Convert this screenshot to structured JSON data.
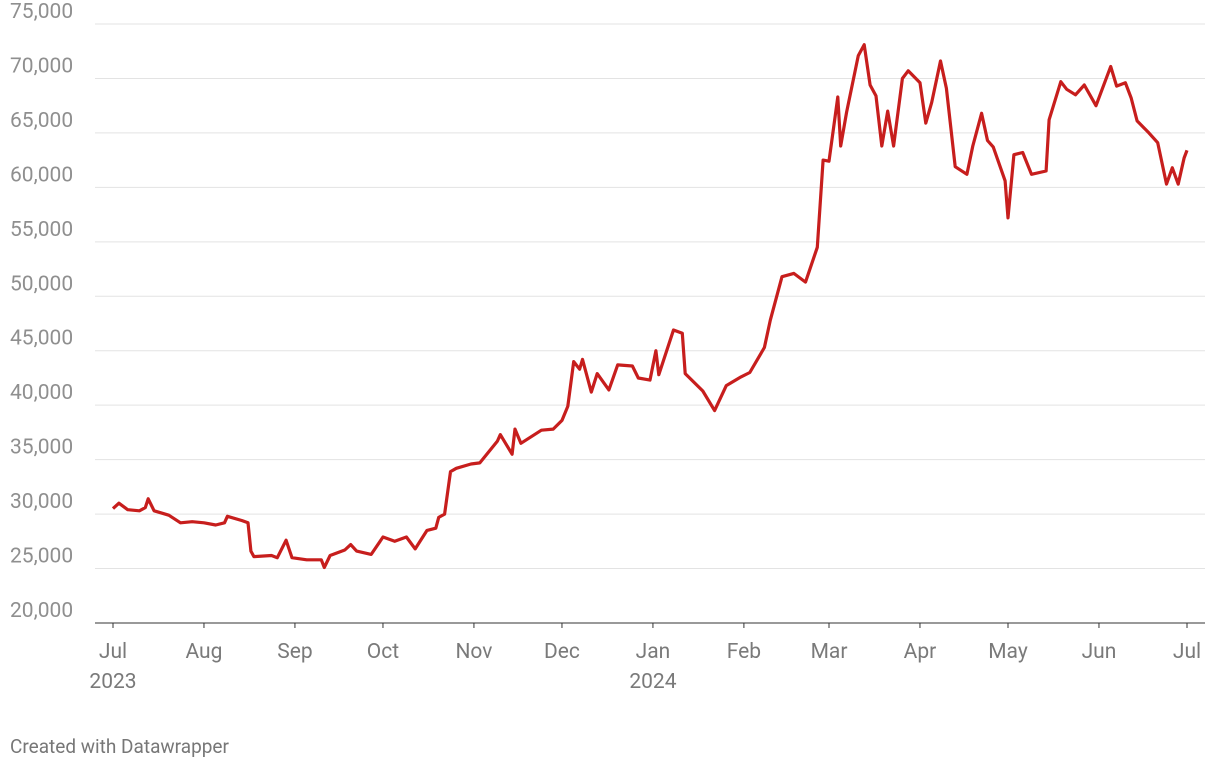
{
  "chart_data": {
    "type": "line",
    "footer": "Created with Datawrapper",
    "x": [
      "2023-07-01",
      "2023-07-03",
      "2023-07-06",
      "2023-07-10",
      "2023-07-12",
      "2023-07-13",
      "2023-07-15",
      "2023-07-20",
      "2023-07-24",
      "2023-07-28",
      "2023-08-01",
      "2023-08-05",
      "2023-08-08",
      "2023-08-09",
      "2023-08-14",
      "2023-08-16",
      "2023-08-17",
      "2023-08-18",
      "2023-08-24",
      "2023-08-26",
      "2023-08-29",
      "2023-08-31",
      "2023-09-05",
      "2023-09-10",
      "2023-09-11",
      "2023-09-13",
      "2023-09-18",
      "2023-09-20",
      "2023-09-22",
      "2023-09-27",
      "2023-10-01",
      "2023-10-05",
      "2023-10-09",
      "2023-10-12",
      "2023-10-16",
      "2023-10-19",
      "2023-10-20",
      "2023-10-22",
      "2023-10-24",
      "2023-10-26",
      "2023-10-31",
      "2023-11-03",
      "2023-11-09",
      "2023-11-10",
      "2023-11-14",
      "2023-11-15",
      "2023-11-17",
      "2023-11-24",
      "2023-11-28",
      "2023-12-01",
      "2023-12-03",
      "2023-12-05",
      "2023-12-07",
      "2023-12-08",
      "2023-12-11",
      "2023-12-13",
      "2023-12-17",
      "2023-12-20",
      "2023-12-25",
      "2023-12-27",
      "2023-12-31",
      "2024-01-02",
      "2024-01-03",
      "2024-01-08",
      "2024-01-11",
      "2024-01-12",
      "2024-01-18",
      "2024-01-22",
      "2024-01-26",
      "2024-01-31",
      "2024-02-03",
      "2024-02-08",
      "2024-02-10",
      "2024-02-14",
      "2024-02-18",
      "2024-02-22",
      "2024-02-26",
      "2024-02-28",
      "2024-03-01",
      "2024-03-04",
      "2024-03-05",
      "2024-03-07",
      "2024-03-11",
      "2024-03-13",
      "2024-03-15",
      "2024-03-17",
      "2024-03-19",
      "2024-03-21",
      "2024-03-23",
      "2024-03-26",
      "2024-03-28",
      "2024-04-01",
      "2024-04-03",
      "2024-04-05",
      "2024-04-08",
      "2024-04-10",
      "2024-04-13",
      "2024-04-17",
      "2024-04-19",
      "2024-04-22",
      "2024-04-24",
      "2024-04-26",
      "2024-04-30",
      "2024-05-01",
      "2024-05-03",
      "2024-05-06",
      "2024-05-09",
      "2024-05-14",
      "2024-05-15",
      "2024-05-19",
      "2024-05-21",
      "2024-05-24",
      "2024-05-27",
      "2024-05-31",
      "2024-06-05",
      "2024-06-07",
      "2024-06-10",
      "2024-06-12",
      "2024-06-14",
      "2024-06-18",
      "2024-06-21",
      "2024-06-24",
      "2024-06-26",
      "2024-06-28",
      "2024-06-30",
      "2024-07-01"
    ],
    "series": [
      {
        "color": "#c71e1d",
        "values": [
          30500,
          31000,
          30400,
          30300,
          30600,
          31400,
          30300,
          29900,
          29200,
          29300,
          29200,
          29000,
          29200,
          29800,
          29400,
          29200,
          26600,
          26100,
          26200,
          26000,
          27600,
          26000,
          25800,
          25800,
          25100,
          26200,
          26700,
          27200,
          26600,
          26300,
          27900,
          27500,
          27900,
          26800,
          28500,
          28700,
          29700,
          30000,
          33900,
          34200,
          34600,
          34700,
          36700,
          37300,
          35500,
          37800,
          36500,
          37700,
          37800,
          38600,
          39900,
          44000,
          43300,
          44200,
          41200,
          42900,
          41400,
          43700,
          43600,
          42500,
          42300,
          45000,
          42800,
          46900,
          46600,
          42900,
          41300,
          39500,
          41800,
          42600,
          43000,
          45300,
          47800,
          51800,
          52100,
          51300,
          54500,
          62500,
          62400,
          68300,
          63800,
          66900,
          72100,
          73100,
          69400,
          68400,
          63800,
          67000,
          63800,
          70000,
          70700,
          69600,
          65900,
          67800,
          71600,
          69100,
          61900,
          61200,
          63800,
          66800,
          64300,
          63700,
          60600,
          57200,
          63000,
          63200,
          61200,
          61500,
          66200,
          69700,
          69000,
          68500,
          69400,
          67500,
          71100,
          69300,
          69600,
          68200,
          66100,
          65000,
          64100,
          60300,
          61800,
          60300,
          62700,
          63400
        ]
      }
    ],
    "xlim": [
      "2023-07-01",
      "2024-07-01"
    ],
    "xticks": [
      {
        "value": "2023-07-01",
        "label": "Jul",
        "year": "2023"
      },
      {
        "value": "2023-08-01",
        "label": "Aug"
      },
      {
        "value": "2023-09-01",
        "label": "Sep"
      },
      {
        "value": "2023-10-01",
        "label": "Oct"
      },
      {
        "value": "2023-11-01",
        "label": "Nov"
      },
      {
        "value": "2023-12-01",
        "label": "Dec"
      },
      {
        "value": "2024-01-01",
        "label": "Jan",
        "year": "2024"
      },
      {
        "value": "2024-02-01",
        "label": "Feb"
      },
      {
        "value": "2024-03-01",
        "label": "Mar"
      },
      {
        "value": "2024-04-01",
        "label": "Apr"
      },
      {
        "value": "2024-05-01",
        "label": "May"
      },
      {
        "value": "2024-06-01",
        "label": "Jun"
      },
      {
        "value": "2024-07-01",
        "label": "Jul"
      }
    ],
    "ylim": [
      20000,
      75000
    ],
    "yticks": [
      {
        "value": 20000,
        "label": "20,000"
      },
      {
        "value": 25000,
        "label": "25,000"
      },
      {
        "value": 30000,
        "label": "30,000"
      },
      {
        "value": 35000,
        "label": "35,000"
      },
      {
        "value": 40000,
        "label": "40,000"
      },
      {
        "value": 45000,
        "label": "45,000"
      },
      {
        "value": 50000,
        "label": "50,000"
      },
      {
        "value": 55000,
        "label": "55,000"
      },
      {
        "value": 60000,
        "label": "60,000"
      },
      {
        "value": 65000,
        "label": "65,000"
      },
      {
        "value": 70000,
        "label": "70,000"
      },
      {
        "value": 75000,
        "label": "75,000"
      }
    ],
    "grid": true
  }
}
